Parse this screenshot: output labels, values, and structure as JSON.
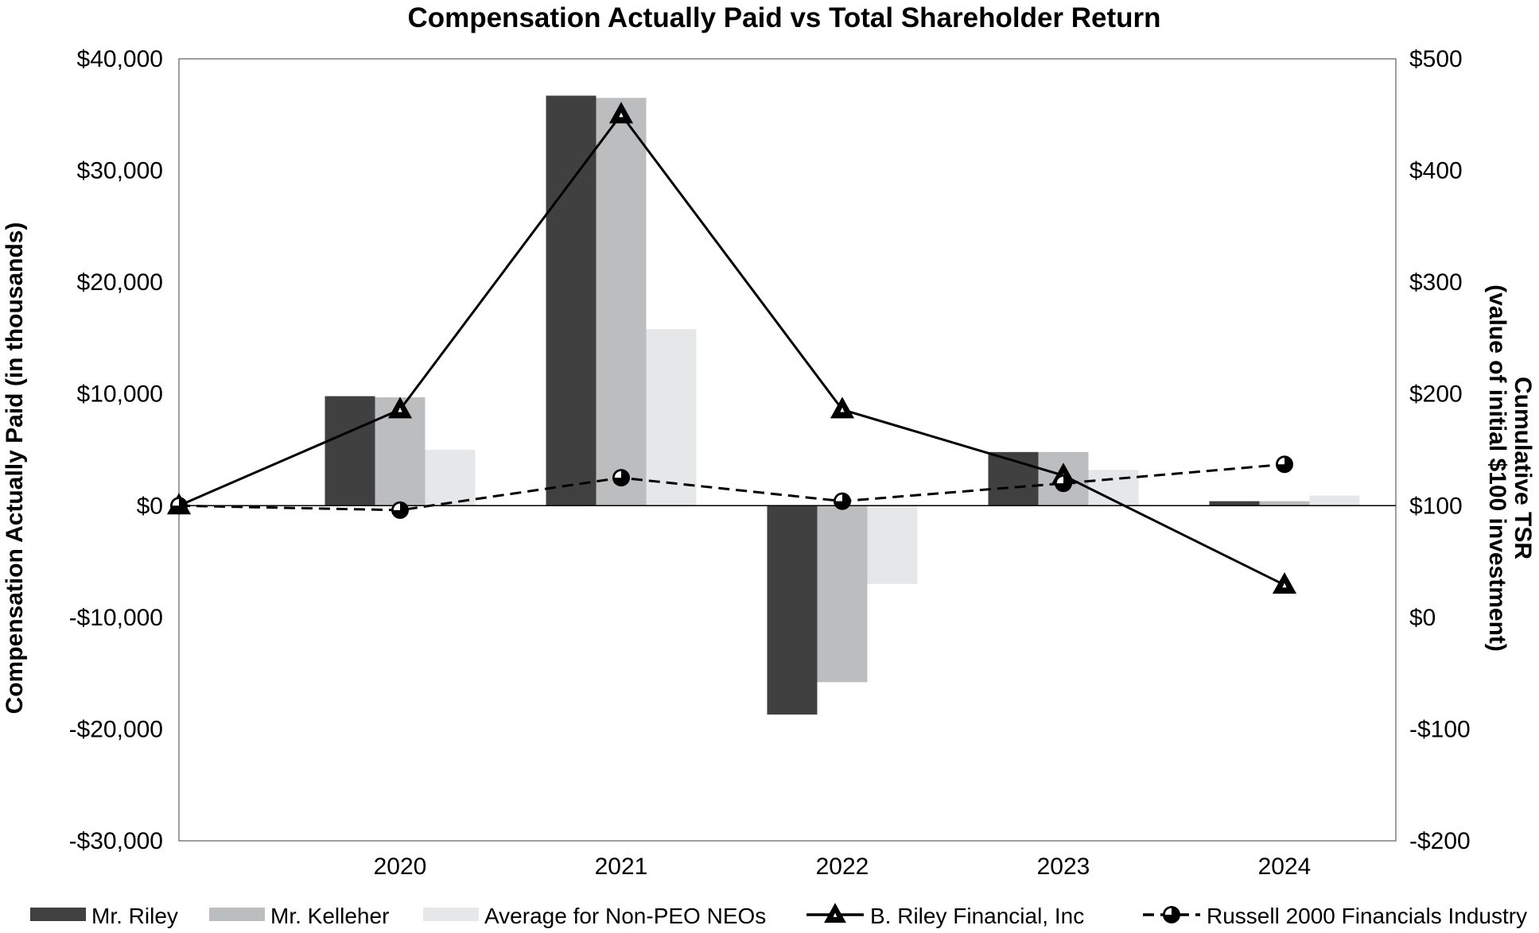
{
  "chart_data": {
    "type": "bar",
    "title": "Compensation Actually Paid vs Total Shareholder Return",
    "ylabel": "Compensation Actually Paid (in thousands)",
    "y2label_line1": "Cumulative TSR",
    "y2label_line2": "(value of initial $100 investment)",
    "categories": [
      "2020",
      "2021",
      "2022",
      "2023",
      "2024"
    ],
    "ylim": [
      -30000,
      40000
    ],
    "y_ticks": [
      40000,
      30000,
      20000,
      10000,
      0,
      -10000,
      -20000,
      -30000
    ],
    "y_tick_labels": [
      "$40,000",
      "$30,000",
      "$20,000",
      "$10,000",
      "$0",
      "-$10,000",
      "-$20,000",
      "-$30,000"
    ],
    "y2lim": [
      -200,
      500
    ],
    "y2_ticks": [
      500,
      400,
      300,
      200,
      100,
      0,
      -100,
      -200
    ],
    "y2_tick_labels": [
      "$500",
      "$400",
      "$300",
      "$200",
      "$100",
      "$0",
      "-$100",
      "-$200"
    ],
    "series": [
      {
        "name": "Mr. Riley",
        "kind": "bar",
        "color": "#404041",
        "values": [
          9800,
          36700,
          -18700,
          4800,
          400
        ]
      },
      {
        "name": "Mr. Kelleher",
        "kind": "bar",
        "color": "#bcbdbf",
        "values": [
          9700,
          36500,
          -15800,
          4800,
          400
        ]
      },
      {
        "name": "Average for Non-PEO NEOs",
        "kind": "bar",
        "color": "#e6e7e8",
        "values": [
          5000,
          15800,
          -7000,
          3200,
          900
        ]
      }
    ],
    "lines": [
      {
        "name": "B. Riley Financial, Inc",
        "axis": "right",
        "style": "solid",
        "marker": "triangle",
        "color": "#000000",
        "x": [
          "2019",
          "2020",
          "2021",
          "2022",
          "2023",
          "2024"
        ],
        "values": [
          100,
          186,
          450,
          186,
          127,
          29
        ]
      },
      {
        "name": "Russell 2000 Financials Industry",
        "axis": "right",
        "style": "dashed",
        "marker": "circle",
        "color": "#000000",
        "x": [
          "2019",
          "2020",
          "2021",
          "2022",
          "2023",
          "2024"
        ],
        "values": [
          100,
          96,
          125,
          104,
          120,
          137
        ]
      }
    ],
    "legend_position": "bottom"
  }
}
